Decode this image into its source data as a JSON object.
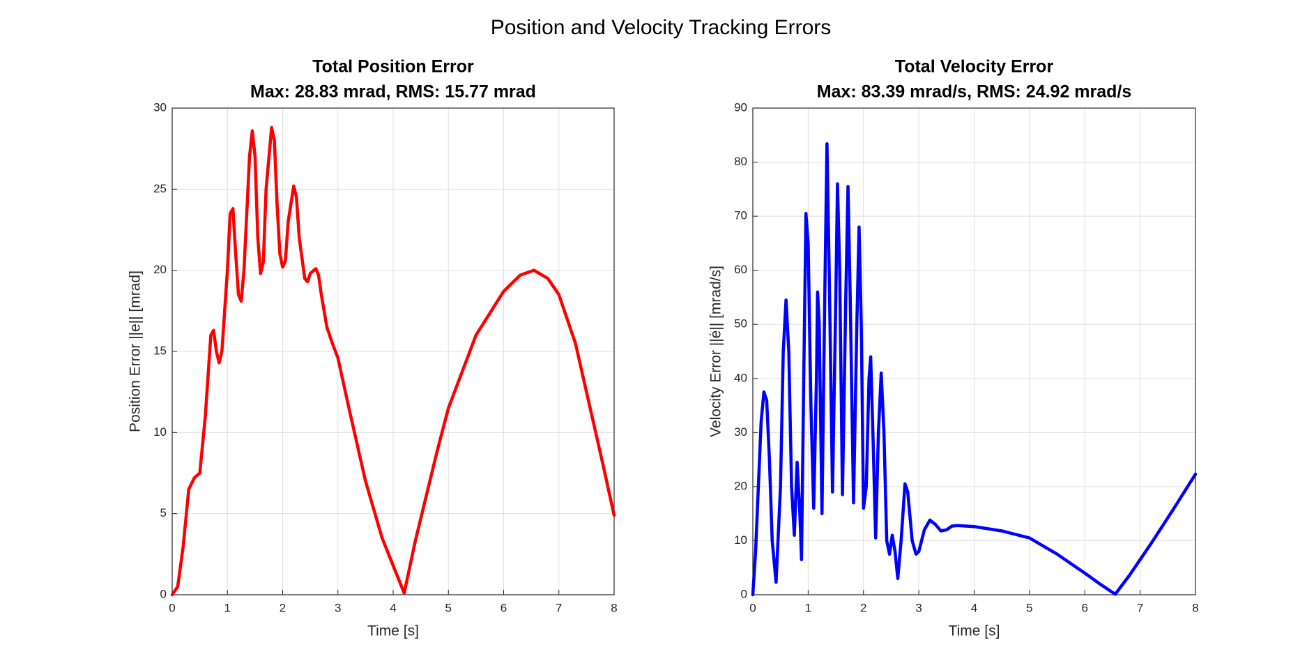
{
  "title": "Position and Velocity Tracking Errors",
  "chart_data": [
    {
      "type": "line",
      "title": "Total Position Error",
      "subtitle": "Max: 28.83 mrad, RMS: 15.77 mrad",
      "xlabel": "Time [s]",
      "ylabel": "Position Error ||e|| [mrad]",
      "xlim": [
        0,
        8
      ],
      "xticks": [
        0,
        1,
        2,
        3,
        4,
        5,
        6,
        7,
        8
      ],
      "ylim": [
        0,
        30
      ],
      "yticks": [
        0,
        5,
        10,
        15,
        20,
        25,
        30
      ],
      "grid": true,
      "color": "#ff0000",
      "x": [
        0,
        0.1,
        0.2,
        0.3,
        0.4,
        0.5,
        0.6,
        0.7,
        0.75,
        0.8,
        0.85,
        0.9,
        1.0,
        1.05,
        1.1,
        1.15,
        1.2,
        1.25,
        1.3,
        1.4,
        1.45,
        1.5,
        1.55,
        1.6,
        1.65,
        1.7,
        1.8,
        1.85,
        1.9,
        1.95,
        2.0,
        2.05,
        2.1,
        2.2,
        2.25,
        2.3,
        2.4,
        2.45,
        2.5,
        2.6,
        2.65,
        2.7,
        2.8,
        2.9,
        3.0,
        3.2,
        3.5,
        3.8,
        4.0,
        4.2,
        4.4,
        4.8,
        5.0,
        5.5,
        6.0,
        6.3,
        6.55,
        6.8,
        7.0,
        7.3,
        7.6,
        7.8,
        8.0
      ],
      "values": [
        0,
        0.5,
        3,
        6.5,
        7.2,
        7.5,
        11,
        16,
        16.3,
        15,
        14.3,
        15,
        20,
        23.5,
        23.8,
        21,
        18.5,
        18.1,
        20,
        27,
        28.6,
        27,
        22,
        19.8,
        20.5,
        25,
        28.8,
        28,
        24,
        21,
        20.2,
        20.6,
        23,
        25.2,
        24.5,
        22,
        19.5,
        19.3,
        19.8,
        20.1,
        19.7,
        18.5,
        16.5,
        15.5,
        14.6,
        11.5,
        7,
        3.5,
        1.8,
        0.1,
        3.3,
        8.9,
        11.5,
        16,
        18.7,
        19.7,
        20,
        19.5,
        18.5,
        15.5,
        11,
        8,
        4.9
      ]
    },
    {
      "type": "line",
      "title": "Total Velocity Error",
      "subtitle": "Max: 83.39 mrad/s, RMS: 24.92 mrad/s",
      "xlabel": "Time [s]",
      "ylabel": "Velocity Error ||ė|| [mrad/s]",
      "xlim": [
        0,
        8
      ],
      "xticks": [
        0,
        1,
        2,
        3,
        4,
        5,
        6,
        7,
        8
      ],
      "ylim": [
        0,
        90
      ],
      "yticks": [
        0,
        10,
        20,
        30,
        40,
        50,
        60,
        70,
        80,
        90
      ],
      "grid": true,
      "color": "#0000ff",
      "x": [
        0,
        0.05,
        0.1,
        0.15,
        0.2,
        0.25,
        0.3,
        0.35,
        0.42,
        0.5,
        0.55,
        0.6,
        0.65,
        0.7,
        0.75,
        0.8,
        0.85,
        0.88,
        0.92,
        0.96,
        1.0,
        1.05,
        1.1,
        1.15,
        1.17,
        1.2,
        1.25,
        1.3,
        1.34,
        1.38,
        1.44,
        1.5,
        1.53,
        1.57,
        1.62,
        1.68,
        1.72,
        1.76,
        1.82,
        1.88,
        1.92,
        1.96,
        2.0,
        2.05,
        2.1,
        2.13,
        2.17,
        2.22,
        2.27,
        2.32,
        2.37,
        2.42,
        2.47,
        2.52,
        2.57,
        2.62,
        2.68,
        2.75,
        2.8,
        2.88,
        2.95,
        3.0,
        3.1,
        3.2,
        3.3,
        3.4,
        3.5,
        3.6,
        3.7,
        4.0,
        4.5,
        5.0,
        5.5,
        6.0,
        6.3,
        6.55,
        6.8,
        7.2,
        7.6,
        8.0
      ],
      "values": [
        0,
        8,
        20,
        32,
        37.5,
        36,
        25,
        10,
        2.3,
        20,
        45,
        54.5,
        45,
        20,
        11,
        24.5,
        15,
        6.5,
        40,
        70.5,
        65,
        35,
        16,
        40,
        56,
        50,
        15,
        55,
        83.4,
        60,
        19,
        55,
        76,
        60,
        18.5,
        55,
        75.5,
        55,
        17,
        50,
        68,
        50,
        16,
        20,
        40,
        44,
        30,
        10.5,
        30,
        41,
        30,
        10,
        7.5,
        11,
        8,
        3,
        10,
        20.5,
        19,
        10,
        7.5,
        8,
        12,
        13.8,
        13,
        11.8,
        12,
        12.7,
        12.8,
        12.6,
        11.8,
        10.5,
        7.5,
        4,
        1.8,
        0.1,
        3.5,
        9.5,
        15.8,
        22.3
      ]
    }
  ]
}
